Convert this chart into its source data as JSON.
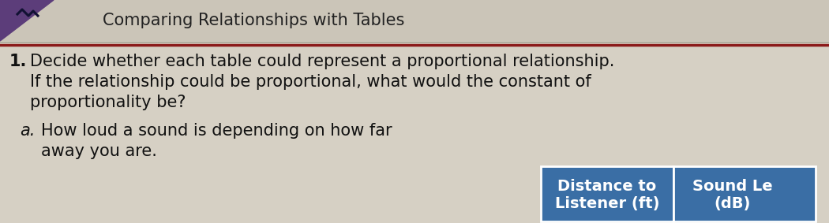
{
  "title": "Comparing Relationships with Tables",
  "title_fontsize": 15,
  "title_color": "#222222",
  "bg_color": "#d6d0c4",
  "title_band_color": "#cbc5b8",
  "accent_color": "#5c3d7a",
  "separator_line_color": "#8b1a1a",
  "question_number": "1.",
  "question_text_line1": "Decide whether each table could represent a proportional relationship.",
  "question_text_line2": "If the relationship could be proportional, what would the constant of",
  "question_text_line3": "proportionality be?",
  "sub_label": "a.",
  "sub_text_line1": "How loud a sound is depending on how far",
  "sub_text_line2": "away you are.",
  "col1_header_line1": "Distance to",
  "col1_header_line2": "Listener (ft)",
  "col2_header_line1": "Sound Le",
  "col2_header_line2": "(dB)",
  "table_header_bg": "#3a6ea5",
  "table_header_text": "#ffffff",
  "text_fontsize": 15,
  "small_fontsize": 13
}
